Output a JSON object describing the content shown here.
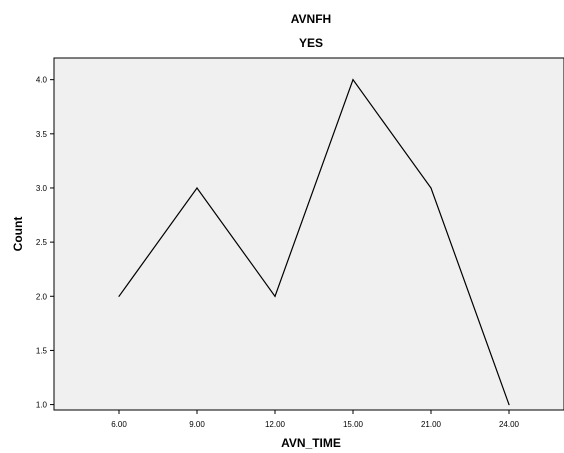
{
  "chart_data": {
    "type": "line",
    "title": "AVNFH",
    "subtitle": "YES",
    "xlabel": "AVN_TIME",
    "ylabel": "Count",
    "categories": [
      "6.00",
      "9.00",
      "12.00",
      "15.00",
      "21.00",
      "24.00"
    ],
    "values": [
      2,
      3,
      2,
      4,
      3,
      1
    ],
    "yticks": [
      "1.0",
      "1.5",
      "2.0",
      "2.5",
      "3.0",
      "3.5",
      "4.0"
    ],
    "ylim": [
      0.95,
      4.2
    ],
    "grid": false,
    "legend": "none",
    "colors": {
      "plot_background": "#f0f0f0",
      "line": "#000000",
      "frame": "#000000"
    }
  }
}
